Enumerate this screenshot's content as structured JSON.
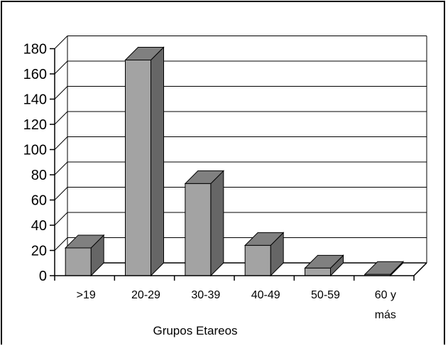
{
  "chart_data": {
    "type": "bar",
    "style": "3d-column",
    "title": "",
    "xlabel": "Grupos Etareos",
    "ylabel": "",
    "categories": [
      ">19",
      "20-29",
      "30-39",
      "40-49",
      "50-59",
      "60 y más"
    ],
    "category_lines": [
      [
        ">19"
      ],
      [
        "20-29"
      ],
      [
        "30-39"
      ],
      [
        "40-49"
      ],
      [
        "50-59"
      ],
      [
        "60 y",
        "más"
      ]
    ],
    "values": [
      22,
      171,
      73,
      24,
      6,
      1
    ],
    "ylim": [
      0,
      180
    ],
    "yticks": [
      "0",
      "20",
      "40",
      "60",
      "80",
      "100",
      "120",
      "140",
      "160",
      "180"
    ],
    "grid": true,
    "legend": "none",
    "colors": {
      "bar_front": "#a3a3a3",
      "bar_side": "#666666",
      "bar_top": "#808080",
      "outline": "#000000",
      "gridline": "#000000",
      "background": "#ffffff"
    }
  }
}
